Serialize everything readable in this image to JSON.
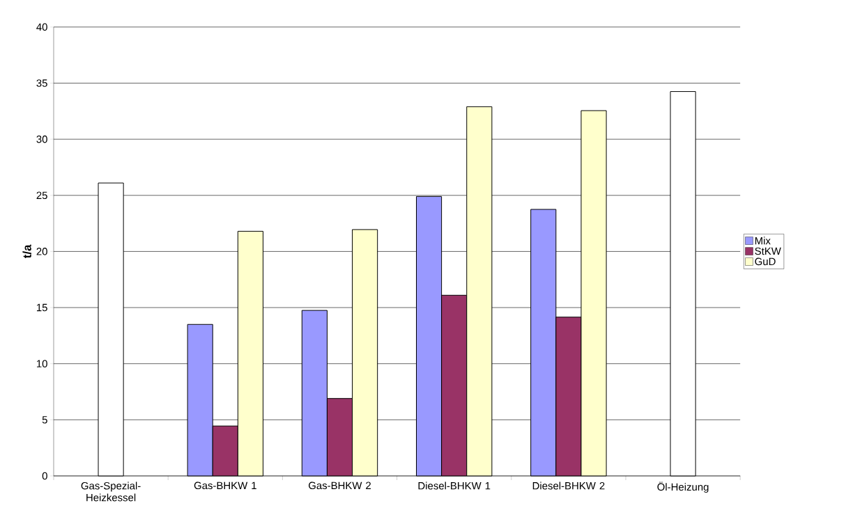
{
  "chart_data": {
    "type": "bar",
    "ylabel": "t/a",
    "categories": [
      "Gas-Spezial-Heizkessel",
      "Gas-BHKW 1",
      "Gas-BHKW 2",
      "Diesel-BHKW 1",
      "Diesel-BHKW 2",
      "Öl-Heizung"
    ],
    "series": [
      {
        "name": "Mix",
        "color": "#9999ff",
        "values": [
          null,
          13.5,
          14.75,
          24.9,
          23.75,
          null
        ]
      },
      {
        "name": "StKW",
        "color": "#993366",
        "colors": [
          "#ffffff",
          "#993366",
          "#993366",
          "#993366",
          "#993366",
          "#ffffff"
        ],
        "values": [
          26.1,
          4.45,
          6.9,
          16.1,
          14.15,
          34.25
        ]
      },
      {
        "name": "GuD",
        "color": "#ffffcc",
        "values": [
          null,
          21.8,
          21.95,
          32.9,
          32.55,
          null
        ]
      }
    ],
    "ylim": [
      0,
      40
    ],
    "yticks": [
      0,
      5,
      10,
      15,
      20,
      25,
      30,
      35,
      40
    ],
    "grid": "y",
    "legend": "right"
  }
}
